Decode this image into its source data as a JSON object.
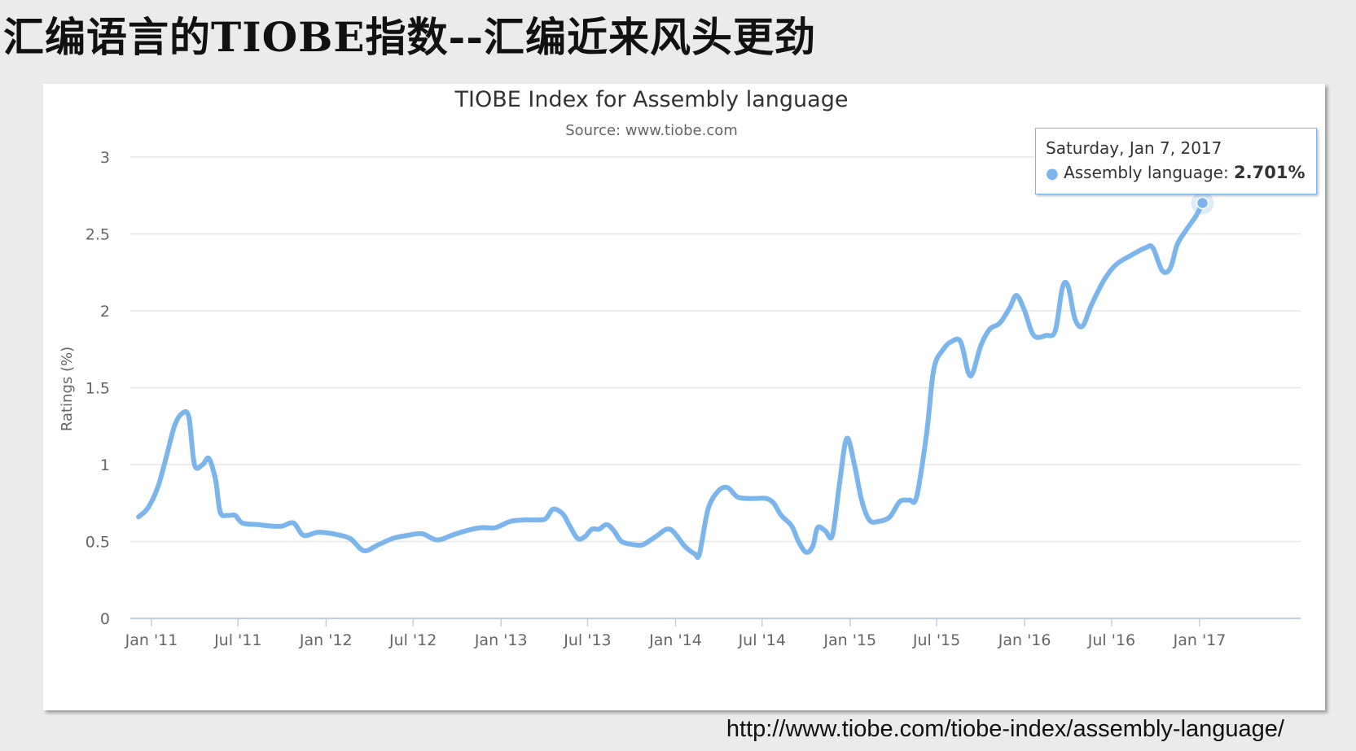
{
  "slide": {
    "title": "汇编语言的TIOBE指数--汇编近来风头更劲",
    "url": "http://www.tiobe.com/tiobe-index/assembly-language/"
  },
  "chart_data": {
    "type": "line",
    "title": "TIOBE Index for Assembly language",
    "subtitle": "Source: www.tiobe.com",
    "xlabel": "",
    "ylabel": "Ratings (%)",
    "ylim": [
      0,
      3
    ],
    "yticks": [
      "0",
      "0.5",
      "1",
      "1.5",
      "2",
      "2.5",
      "3"
    ],
    "xticks": [
      {
        "label": "Jan '11",
        "date": "2011-01"
      },
      {
        "label": "Jul '11",
        "date": "2011-07"
      },
      {
        "label": "Jan '12",
        "date": "2012-01"
      },
      {
        "label": "Jul '12",
        "date": "2012-07"
      },
      {
        "label": "Jan '13",
        "date": "2013-01"
      },
      {
        "label": "Jul '13",
        "date": "2013-07"
      },
      {
        "label": "Jan '14",
        "date": "2014-01"
      },
      {
        "label": "Jul '14",
        "date": "2014-07"
      },
      {
        "label": "Jan '15",
        "date": "2015-01"
      },
      {
        "label": "Jul '15",
        "date": "2015-07"
      },
      {
        "label": "Jan '16",
        "date": "2016-01"
      },
      {
        "label": "Jul '16",
        "date": "2016-07"
      },
      {
        "label": "Jan '17",
        "date": "2017-01"
      }
    ],
    "grid": true,
    "legend": "none",
    "color": "#7cb5ec",
    "series": [
      {
        "values": [
          [
            "2010-12-05",
            0.66
          ],
          [
            "2010-12-25",
            0.72
          ],
          [
            "2011-01-15",
            0.86
          ],
          [
            "2011-02-01",
            1.05
          ],
          [
            "2011-02-18",
            1.25
          ],
          [
            "2011-03-05",
            1.33
          ],
          [
            "2011-03-20",
            1.31
          ],
          [
            "2011-04-01",
            1.0
          ],
          [
            "2011-04-18",
            1.0
          ],
          [
            "2011-05-01",
            1.04
          ],
          [
            "2011-05-15",
            0.9
          ],
          [
            "2011-05-25",
            0.69
          ],
          [
            "2011-06-10",
            0.67
          ],
          [
            "2011-06-25",
            0.67
          ],
          [
            "2011-07-10",
            0.62
          ],
          [
            "2011-08-10",
            0.61
          ],
          [
            "2011-09-10",
            0.6
          ],
          [
            "2011-10-01",
            0.6
          ],
          [
            "2011-10-25",
            0.62
          ],
          [
            "2011-11-15",
            0.54
          ],
          [
            "2011-12-15",
            0.56
          ],
          [
            "2012-01-15",
            0.55
          ],
          [
            "2012-02-20",
            0.52
          ],
          [
            "2012-03-20",
            0.44
          ],
          [
            "2012-04-20",
            0.48
          ],
          [
            "2012-05-20",
            0.52
          ],
          [
            "2012-06-20",
            0.54
          ],
          [
            "2012-07-20",
            0.55
          ],
          [
            "2012-08-20",
            0.51
          ],
          [
            "2012-09-20",
            0.54
          ],
          [
            "2012-10-20",
            0.57
          ],
          [
            "2012-11-20",
            0.59
          ],
          [
            "2012-12-20",
            0.59
          ],
          [
            "2013-01-20",
            0.63
          ],
          [
            "2013-02-20",
            0.64
          ],
          [
            "2013-03-20",
            0.64
          ],
          [
            "2013-04-05",
            0.65
          ],
          [
            "2013-04-20",
            0.71
          ],
          [
            "2013-05-10",
            0.68
          ],
          [
            "2013-05-25",
            0.6
          ],
          [
            "2013-06-10",
            0.52
          ],
          [
            "2013-06-25",
            0.53
          ],
          [
            "2013-07-10",
            0.58
          ],
          [
            "2013-07-25",
            0.58
          ],
          [
            "2013-08-10",
            0.61
          ],
          [
            "2013-08-25",
            0.57
          ],
          [
            "2013-09-10",
            0.5
          ],
          [
            "2013-10-05",
            0.48
          ],
          [
            "2013-10-25",
            0.48
          ],
          [
            "2013-11-20",
            0.53
          ],
          [
            "2013-12-20",
            0.58
          ],
          [
            "2014-01-20",
            0.47
          ],
          [
            "2014-02-10",
            0.42
          ],
          [
            "2014-02-20",
            0.42
          ],
          [
            "2014-03-10",
            0.71
          ],
          [
            "2014-04-01",
            0.83
          ],
          [
            "2014-04-20",
            0.85
          ],
          [
            "2014-05-10",
            0.79
          ],
          [
            "2014-06-01",
            0.78
          ],
          [
            "2014-06-20",
            0.78
          ],
          [
            "2014-07-10",
            0.78
          ],
          [
            "2014-07-25",
            0.75
          ],
          [
            "2014-08-10",
            0.67
          ],
          [
            "2014-09-01",
            0.6
          ],
          [
            "2014-09-15",
            0.5
          ],
          [
            "2014-10-01",
            0.43
          ],
          [
            "2014-10-15",
            0.47
          ],
          [
            "2014-10-25",
            0.59
          ],
          [
            "2014-11-10",
            0.57
          ],
          [
            "2014-11-25",
            0.54
          ],
          [
            "2014-12-10",
            0.88
          ],
          [
            "2014-12-25",
            1.17
          ],
          [
            "2015-01-10",
            1.0
          ],
          [
            "2015-01-25",
            0.77
          ],
          [
            "2015-02-10",
            0.64
          ],
          [
            "2015-03-01",
            0.63
          ],
          [
            "2015-03-25",
            0.66
          ],
          [
            "2015-04-15",
            0.76
          ],
          [
            "2015-05-05",
            0.77
          ],
          [
            "2015-05-20",
            0.79
          ],
          [
            "2015-06-10",
            1.2
          ],
          [
            "2015-06-25",
            1.62
          ],
          [
            "2015-07-15",
            1.75
          ],
          [
            "2015-08-01",
            1.8
          ],
          [
            "2015-08-20",
            1.8
          ],
          [
            "2015-09-05",
            1.6
          ],
          [
            "2015-09-15",
            1.6
          ],
          [
            "2015-10-01",
            1.77
          ],
          [
            "2015-10-20",
            1.88
          ],
          [
            "2015-11-10",
            1.92
          ],
          [
            "2015-12-01",
            2.02
          ],
          [
            "2015-12-15",
            2.1
          ],
          [
            "2016-01-01",
            2.0
          ],
          [
            "2016-01-20",
            1.84
          ],
          [
            "2016-02-15",
            1.84
          ],
          [
            "2016-03-05",
            1.87
          ],
          [
            "2016-03-20",
            2.15
          ],
          [
            "2016-04-01",
            2.16
          ],
          [
            "2016-04-15",
            1.95
          ],
          [
            "2016-05-01",
            1.9
          ],
          [
            "2016-05-20",
            2.04
          ],
          [
            "2016-06-15",
            2.2
          ],
          [
            "2016-07-10",
            2.3
          ],
          [
            "2016-08-10",
            2.36
          ],
          [
            "2016-09-10",
            2.41
          ],
          [
            "2016-09-25",
            2.41
          ],
          [
            "2016-10-15",
            2.26
          ],
          [
            "2016-11-01",
            2.28
          ],
          [
            "2016-11-15",
            2.43
          ],
          [
            "2016-12-05",
            2.53
          ],
          [
            "2016-12-25",
            2.62
          ],
          [
            "2017-01-07",
            2.701
          ]
        ]
      }
    ],
    "tooltip": {
      "date": "Saturday, Jan 7, 2017",
      "series_label": "Assembly language:",
      "value_label": "2.701%",
      "x": "2017-01-07",
      "y": 2.701
    }
  }
}
